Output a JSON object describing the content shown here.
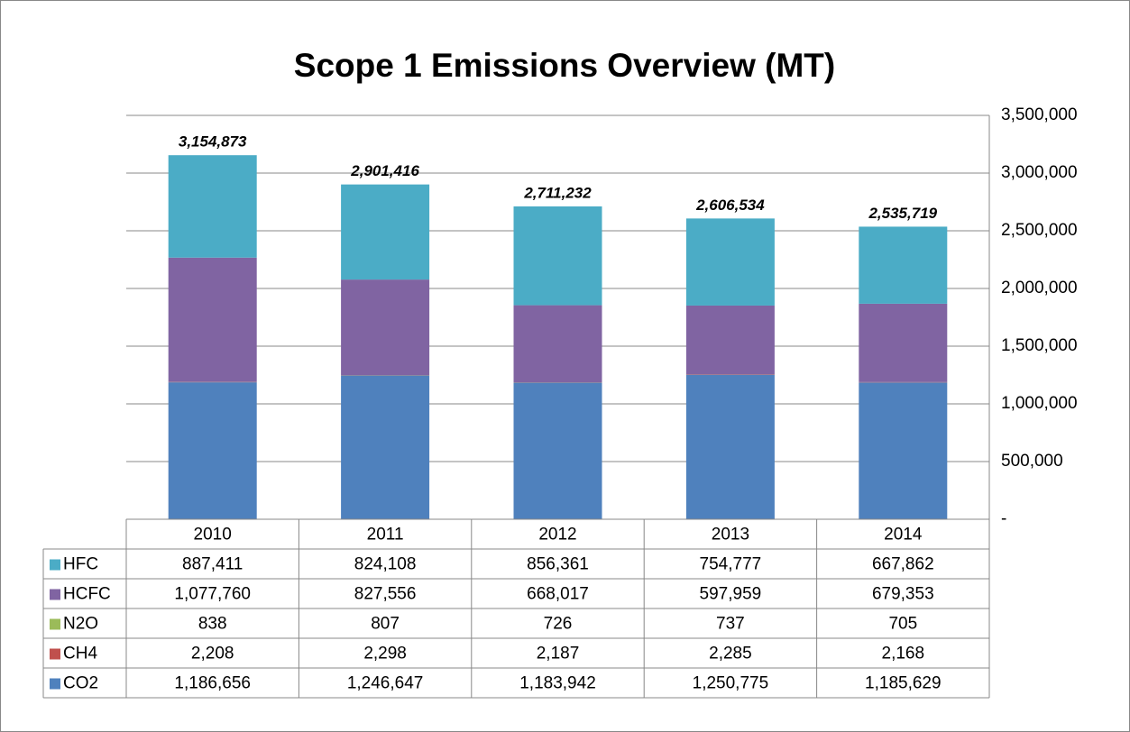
{
  "chart_data": {
    "type": "stacked_bar",
    "title": "Scope 1 Emissions Overview (MT)",
    "categories": [
      "2010",
      "2011",
      "2012",
      "2013",
      "2014"
    ],
    "series": [
      {
        "name": "CO2",
        "color": "#4f81bd",
        "values": [
          1186656,
          1246647,
          1183942,
          1250775,
          1185629
        ],
        "value_labels": [
          "1,186,656",
          "1,246,647",
          "1,183,942",
          "1,250,775",
          "1,185,629"
        ]
      },
      {
        "name": "CH4",
        "color": "#c0504d",
        "values": [
          2208,
          2298,
          2187,
          2285,
          2168
        ],
        "value_labels": [
          "2,208",
          "2,298",
          "2,187",
          "2,285",
          "2,168"
        ]
      },
      {
        "name": "N2O",
        "color": "#9bbb59",
        "values": [
          838,
          807,
          726,
          737,
          705
        ],
        "value_labels": [
          "838",
          "807",
          "726",
          "737",
          "705"
        ]
      },
      {
        "name": "HCFC",
        "color": "#8064a2",
        "values": [
          1077760,
          827556,
          668017,
          597959,
          679353
        ],
        "value_labels": [
          "1,077,760",
          "827,556",
          "668,017",
          "597,959",
          "679,353"
        ]
      },
      {
        "name": "HFC",
        "color": "#4bacc6",
        "values": [
          887411,
          824108,
          856361,
          754777,
          667862
        ],
        "value_labels": [
          "887,411",
          "824,108",
          "856,361",
          "754,777",
          "667,862"
        ]
      }
    ],
    "totals": [
      3154873,
      2901416,
      2711232,
      2606534,
      2535719
    ],
    "total_labels": [
      "3,154,873",
      "2,901,416",
      "2,711,232",
      "2,606,534",
      "2,535,719"
    ],
    "ylim": [
      0,
      3500000
    ],
    "yticks": [
      {
        "value": 0,
        "label": "-"
      },
      {
        "value": 500000,
        "label": "500,000"
      },
      {
        "value": 1000000,
        "label": "1,000,000"
      },
      {
        "value": 1500000,
        "label": "1,500,000"
      },
      {
        "value": 2000000,
        "label": "2,000,000"
      },
      {
        "value": 2500000,
        "label": "2,500,000"
      },
      {
        "value": 3000000,
        "label": "3,000,000"
      },
      {
        "value": 3500000,
        "label": "3,500,000"
      }
    ],
    "grid": true
  }
}
